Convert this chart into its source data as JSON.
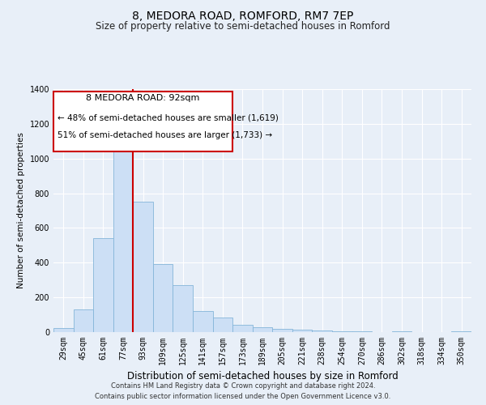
{
  "title": "8, MEDORA ROAD, ROMFORD, RM7 7EP",
  "subtitle": "Size of property relative to semi-detached houses in Romford",
  "xlabel": "Distribution of semi-detached houses by size in Romford",
  "ylabel": "Number of semi-detached properties",
  "bar_labels": [
    "29sqm",
    "45sqm",
    "61sqm",
    "77sqm",
    "93sqm",
    "109sqm",
    "125sqm",
    "141sqm",
    "157sqm",
    "173sqm",
    "189sqm",
    "205sqm",
    "221sqm",
    "238sqm",
    "254sqm",
    "270sqm",
    "286sqm",
    "302sqm",
    "318sqm",
    "334sqm",
    "350sqm"
  ],
  "bar_values": [
    25,
    130,
    540,
    1045,
    750,
    390,
    270,
    120,
    85,
    42,
    28,
    18,
    14,
    10,
    5,
    5,
    0,
    5,
    0,
    0,
    5
  ],
  "bar_color": "#ccdff5",
  "bar_edge_color": "#85b5d9",
  "vline_pos": 3.5,
  "vline_color": "#cc0000",
  "annotation_title": "8 MEDORA ROAD: 92sqm",
  "annotation_line1": "← 48% of semi-detached houses are smaller (1,619)",
  "annotation_line2": "51% of semi-detached houses are larger (1,733) →",
  "annotation_box_color": "#ffffff",
  "annotation_box_edge": "#cc0000",
  "ylim": [
    0,
    1400
  ],
  "yticks": [
    0,
    200,
    400,
    600,
    800,
    1000,
    1200,
    1400
  ],
  "footnote1": "Contains HM Land Registry data © Crown copyright and database right 2024.",
  "footnote2": "Contains public sector information licensed under the Open Government Licence v3.0.",
  "bg_color": "#e8eff8",
  "plot_bg_color": "#e8eff8",
  "grid_color": "#ffffff",
  "title_fontsize": 10,
  "subtitle_fontsize": 8.5,
  "xlabel_fontsize": 8.5,
  "ylabel_fontsize": 7.5,
  "tick_fontsize": 7,
  "annot_title_fontsize": 8,
  "annot_text_fontsize": 7.5,
  "footnote_fontsize": 6
}
